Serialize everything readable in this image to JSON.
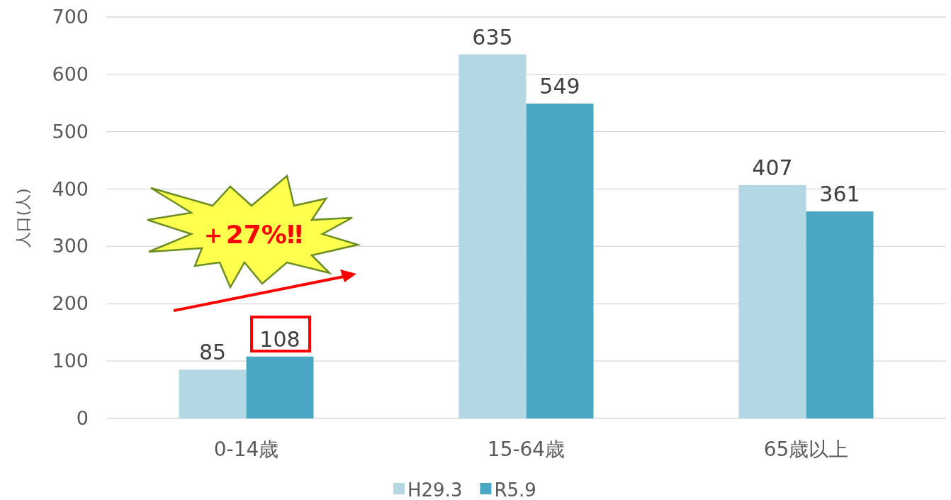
{
  "chart_data": {
    "type": "bar",
    "ylabel": "人口(人)",
    "categories": [
      "0-14歳",
      "15-64歳",
      "65歳以上"
    ],
    "series": [
      {
        "name": "H29.3",
        "color": "#b4d7e4",
        "values": [
          85,
          635,
          407
        ]
      },
      {
        "name": "R5.9",
        "color": "#4aa7c3",
        "values": [
          108,
          549,
          361
        ]
      }
    ],
    "ylim": [
      0,
      700
    ],
    "yticks": [
      0,
      100,
      200,
      300,
      400,
      500,
      600,
      700
    ],
    "grid": "y",
    "legend": "bottom",
    "data_labels": true,
    "annotations": [
      "＋27%‼"
    ]
  }
}
